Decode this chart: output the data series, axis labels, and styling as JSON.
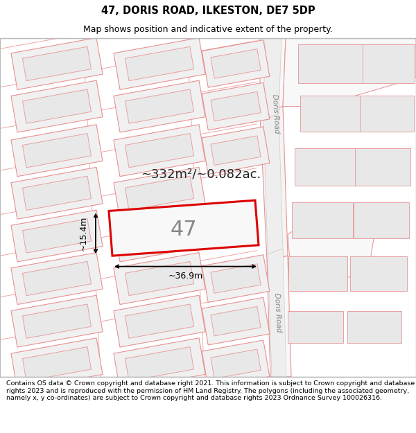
{
  "title_line1": "47, DORIS ROAD, ILKESTON, DE7 5DP",
  "title_line2": "Map shows position and indicative extent of the property.",
  "footer_text": "Contains OS data © Crown copyright and database right 2021. This information is subject to Crown copyright and database rights 2023 and is reproduced with the permission of HM Land Registry. The polygons (including the associated geometry, namely x, y co-ordinates) are subject to Crown copyright and database rights 2023 Ordnance Survey 100026316.",
  "area_text": "~332m²/~0.082ac.",
  "property_number": "47",
  "dim_width": "~36.9m",
  "dim_height": "~15.4m",
  "map_bg": "#ffffff",
  "building_fill": "#e8e8e8",
  "building_edge": "#e8a0a0",
  "road_fill": "#f0f0f0",
  "road_edge": "#cccccc",
  "red_line": "#dd0000",
  "pink_line": "#e89090",
  "title_fontsize": 10.5,
  "subtitle_fontsize": 9,
  "footer_fontsize": 6.8,
  "road_label_color": "#888888"
}
